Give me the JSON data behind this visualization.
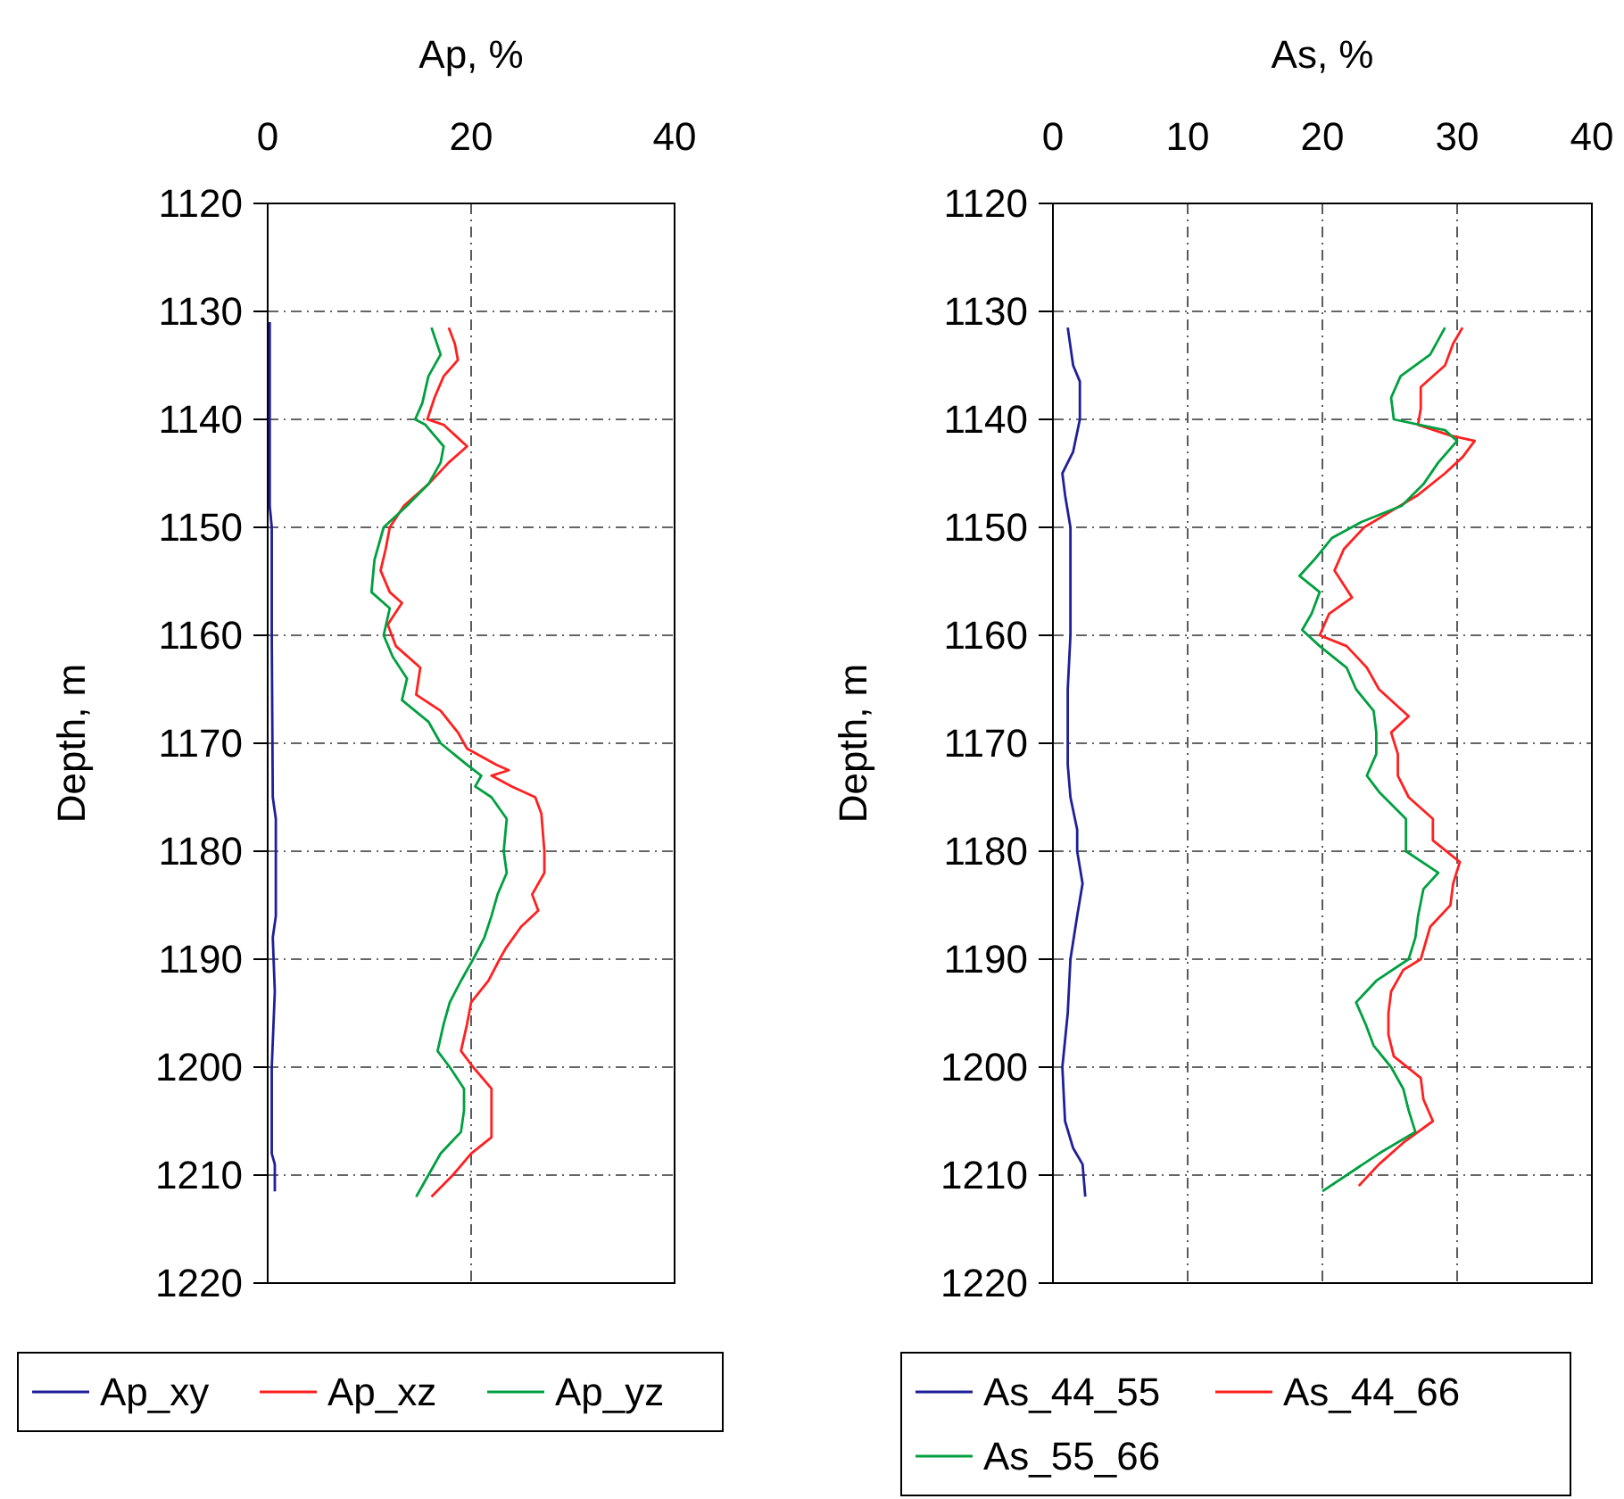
{
  "chart_data": [
    {
      "type": "line",
      "xlabel": "Ap, %",
      "ylabel": "Depth, m",
      "xlim": [
        0,
        40
      ],
      "xticks": [
        0,
        20,
        40
      ],
      "ylim": [
        1220,
        1120
      ],
      "yticks": [
        1120,
        1130,
        1140,
        1150,
        1160,
        1170,
        1180,
        1190,
        1200,
        1210,
        1220
      ],
      "grid": true,
      "legend": "bottom",
      "series": [
        {
          "name": "Ap_xy",
          "color": "#1f1f9a",
          "x": [
            0.2,
            0.2,
            0.4,
            0.4,
            0.5,
            0.8,
            0.8,
            0.5,
            0.7,
            0.4,
            0.4,
            0.7,
            0.7
          ],
          "values": [
            1131,
            1148,
            1150,
            1160,
            1175,
            1177,
            1186,
            1188,
            1193,
            1200,
            1208,
            1209,
            1211.5
          ]
        },
        {
          "name": "Ap_xz",
          "color": "#ff2020",
          "x": [
            17.8,
            18.4,
            18.7,
            17.3,
            16.4,
            15.7,
            17.3,
            19.6,
            17.8,
            15.8,
            13.4,
            12.0,
            11.6,
            11.1,
            12.0,
            13.2,
            11.8,
            12.6,
            15.0,
            14.6,
            17.0,
            18.7,
            19.6,
            22.5,
            23.7,
            22.0,
            24.0,
            26.3,
            26.9,
            27.2,
            27.2,
            26.0,
            26.6,
            24.9,
            23.4,
            22.8,
            21.7,
            20.0,
            19.6,
            19.0,
            20.2,
            22.0,
            22.0,
            22.0,
            20.0,
            18.2,
            16.1
          ],
          "values": [
            1131.5,
            1133,
            1134.5,
            1136,
            1138,
            1140,
            1140.5,
            1142.5,
            1144,
            1146,
            1148,
            1150,
            1152,
            1154,
            1156,
            1157,
            1159,
            1161,
            1163,
            1165.5,
            1167,
            1169,
            1170.5,
            1172,
            1172.5,
            1173,
            1174,
            1175,
            1176.5,
            1180,
            1182,
            1184,
            1185.5,
            1187,
            1189,
            1190,
            1192,
            1194,
            1196,
            1198.5,
            1200,
            1202,
            1204,
            1206.5,
            1208,
            1210,
            1212
          ]
        },
        {
          "name": "Ap_yz",
          "color": "#00a040",
          "x": [
            16.1,
            17.0,
            15.8,
            15.2,
            14.5,
            15.5,
            17.3,
            17.0,
            15.8,
            13.7,
            11.4,
            10.5,
            10.2,
            12.0,
            11.4,
            12.3,
            13.7,
            13.2,
            15.8,
            17.0,
            19.6,
            21.0,
            20.4,
            22.0,
            23.5,
            23.2,
            23.5,
            22.6,
            22.0,
            21.3,
            20.2,
            19.0,
            17.9,
            17.3,
            16.7,
            17.9,
            19.3,
            19.3,
            19.0,
            17.0,
            15.8,
            14.6
          ],
          "values": [
            1131.5,
            1134,
            1136,
            1138.5,
            1140,
            1140.5,
            1142.5,
            1144,
            1146,
            1148,
            1150,
            1153,
            1156,
            1157.5,
            1160,
            1162,
            1164,
            1166,
            1168,
            1170,
            1172,
            1173,
            1174,
            1175,
            1177,
            1180,
            1182,
            1184,
            1186,
            1188,
            1190,
            1192,
            1194,
            1196,
            1198.5,
            1200,
            1202,
            1204,
            1206,
            1208,
            1210,
            1212
          ]
        }
      ]
    },
    {
      "type": "line",
      "xlabel": "As, %",
      "ylabel": "Depth, m",
      "xlim": [
        0,
        40
      ],
      "xticks": [
        0,
        10,
        20,
        30,
        40
      ],
      "ylim": [
        1220,
        1120
      ],
      "yticks": [
        1120,
        1130,
        1140,
        1150,
        1160,
        1170,
        1180,
        1190,
        1200,
        1210,
        1220
      ],
      "grid": true,
      "legend": "bottom",
      "series": [
        {
          "name": "As_44_55",
          "color": "#1f1f9a",
          "x": [
            1.1,
            1.5,
            2.0,
            2.0,
            1.5,
            0.7,
            0.9,
            1.3,
            1.3,
            1.1,
            1.1,
            1.3,
            1.8,
            1.8,
            2.2,
            1.8,
            1.3,
            1.1,
            0.7,
            0.9,
            1.5,
            2.2,
            2.4
          ],
          "values": [
            1131.5,
            1135,
            1136.5,
            1140,
            1143,
            1145,
            1147,
            1150,
            1160,
            1165,
            1172,
            1175,
            1178,
            1180,
            1183,
            1186,
            1190,
            1195,
            1200,
            1205,
            1207.5,
            1209,
            1212
          ]
        },
        {
          "name": "As_44_66",
          "color": "#ff2020",
          "x": [
            30.4,
            29.7,
            29.1,
            27.3,
            27.3,
            27.1,
            29.5,
            31.3,
            30.4,
            29.1,
            27.1,
            25.1,
            23.1,
            21.6,
            20.9,
            22.2,
            20.5,
            19.8,
            21.8,
            23.3,
            24.2,
            26.4,
            25.1,
            25.6,
            25.6,
            26.4,
            28.2,
            28.2,
            30.2,
            29.7,
            29.5,
            28.0,
            27.3,
            26.0,
            25.1,
            24.9,
            24.9,
            25.3,
            27.3,
            27.5,
            28.2,
            26.0,
            24.2,
            22.7
          ],
          "values": [
            1131.5,
            1133,
            1135,
            1137,
            1139,
            1140.5,
            1141.5,
            1142,
            1143.5,
            1145,
            1147,
            1148.5,
            1150,
            1152,
            1154,
            1156.5,
            1158,
            1160,
            1161,
            1163,
            1165,
            1167.5,
            1169,
            1171,
            1173,
            1175,
            1177,
            1179,
            1181,
            1183,
            1185,
            1187,
            1190,
            1191,
            1193,
            1195,
            1197,
            1199,
            1201,
            1203,
            1205,
            1207,
            1209,
            1211
          ]
        },
        {
          "name": "As_55_66",
          "color": "#00a040",
          "x": [
            29.1,
            28.0,
            25.8,
            25.1,
            25.3,
            29.1,
            30.0,
            28.6,
            27.5,
            25.9,
            22.9,
            20.7,
            19.4,
            18.3,
            19.8,
            19.2,
            18.5,
            19.8,
            21.8,
            22.5,
            23.8,
            24.0,
            24.0,
            23.3,
            24.2,
            26.2,
            26.2,
            28.6,
            27.5,
            27.1,
            26.9,
            26.4,
            24.0,
            22.5,
            23.2,
            23.8,
            25.1,
            26.0,
            26.4,
            26.9,
            24.2,
            21.8,
            20.0
          ],
          "values": [
            1131.5,
            1134,
            1136,
            1138,
            1140,
            1141,
            1142,
            1144,
            1146,
            1148,
            1149.5,
            1151,
            1153,
            1154.5,
            1156,
            1158,
            1159.5,
            1161,
            1163,
            1165,
            1167,
            1169,
            1171,
            1173,
            1174.5,
            1177,
            1180,
            1182,
            1183.5,
            1186,
            1188,
            1190,
            1192,
            1194,
            1196,
            1198,
            1200,
            1202,
            1204,
            1206,
            1208,
            1210,
            1211.5
          ]
        }
      ]
    }
  ]
}
